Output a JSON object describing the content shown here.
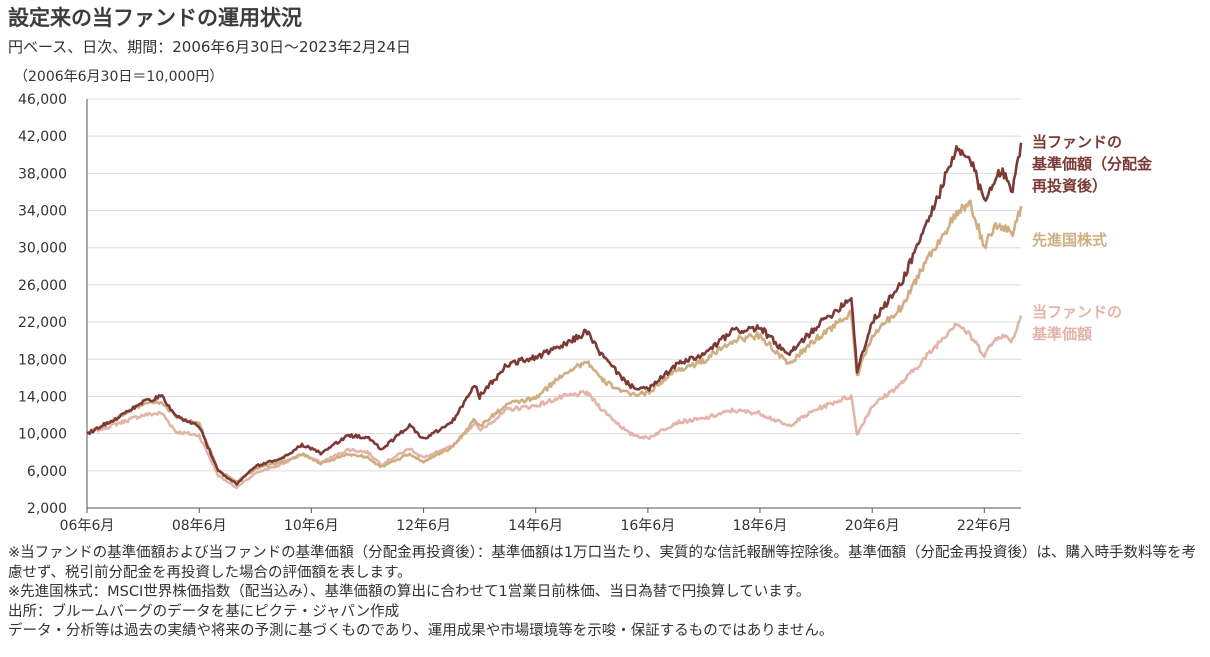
{
  "header": {
    "title": "設定来の当ファンドの運用状況",
    "subtitle": "円ベース、日次、期間：2006年6月30日～2023年2月24日",
    "unit": "（2006年6月30日＝10,000円）"
  },
  "chart_data": {
    "type": "line",
    "title": "設定来の当ファンドの運用状況",
    "subtitle": "円ベース、日次、期間：2006年6月30日～2023年2月24日",
    "ylabel": "（2006年6月30日＝10,000円）",
    "xlabel": "",
    "ylim": [
      2000,
      46000
    ],
    "xlim": [
      "2006-06-30",
      "2023-02-24"
    ],
    "yticks": [
      2000,
      6000,
      10000,
      14000,
      18000,
      22000,
      26000,
      30000,
      34000,
      38000,
      42000,
      46000
    ],
    "ytick_labels": [
      "2,000",
      "6,000",
      "10,000",
      "14,000",
      "18,000",
      "22,000",
      "26,000",
      "30,000",
      "34,000",
      "38,000",
      "42,000",
      "46,000"
    ],
    "xticks": [
      "2006-06-30",
      "2008-06-30",
      "2010-06-30",
      "2012-06-30",
      "2014-06-30",
      "2016-06-30",
      "2018-06-30",
      "2020-06-30",
      "2022-06-30"
    ],
    "xtick_labels": [
      "06年6月",
      "08年6月",
      "10年6月",
      "12年6月",
      "14年6月",
      "16年6月",
      "18年6月",
      "20年6月",
      "22年6月"
    ],
    "grid": true,
    "legend": "right",
    "series": [
      {
        "name": "当ファンドの基準価額",
        "color": "#e3b5aa",
        "points": [
          [
            "2006-06-30",
            10000
          ],
          [
            "2006-12-31",
            11000
          ],
          [
            "2007-06-30",
            12000
          ],
          [
            "2007-10-31",
            12200
          ],
          [
            "2008-01-31",
            10200
          ],
          [
            "2008-06-30",
            9800
          ],
          [
            "2008-10-31",
            5500
          ],
          [
            "2009-02-28",
            4200
          ],
          [
            "2009-06-30",
            5700
          ],
          [
            "2009-12-31",
            6800
          ],
          [
            "2010-04-30",
            7800
          ],
          [
            "2010-08-31",
            6900
          ],
          [
            "2011-02-28",
            8300
          ],
          [
            "2011-06-30",
            8000
          ],
          [
            "2011-09-30",
            6700
          ],
          [
            "2012-03-31",
            8400
          ],
          [
            "2012-06-30",
            7400
          ],
          [
            "2012-12-31",
            8600
          ],
          [
            "2013-05-31",
            11200
          ],
          [
            "2013-06-30",
            10300
          ],
          [
            "2013-12-31",
            12600
          ],
          [
            "2014-06-30",
            13000
          ],
          [
            "2014-12-31",
            14000
          ],
          [
            "2015-05-31",
            14400
          ],
          [
            "2015-08-31",
            12700
          ],
          [
            "2016-02-29",
            10000
          ],
          [
            "2016-06-30",
            9500
          ],
          [
            "2016-12-31",
            11200
          ],
          [
            "2017-06-30",
            11600
          ],
          [
            "2017-12-31",
            12500
          ],
          [
            "2018-06-30",
            12200
          ],
          [
            "2018-12-31",
            10800
          ],
          [
            "2019-06-30",
            12600
          ],
          [
            "2019-12-31",
            13800
          ],
          [
            "2020-02-15",
            14000
          ],
          [
            "2020-03-23",
            9900
          ],
          [
            "2020-06-30",
            13000
          ],
          [
            "2020-12-31",
            15300
          ],
          [
            "2021-06-30",
            18500
          ],
          [
            "2021-12-31",
            22000
          ],
          [
            "2022-03-31",
            20500
          ],
          [
            "2022-06-30",
            18500
          ],
          [
            "2022-09-30",
            20600
          ],
          [
            "2022-12-31",
            20100
          ],
          [
            "2023-02-24",
            22700
          ]
        ]
      },
      {
        "name": "先進国株式",
        "color": "#cfae82",
        "points": [
          [
            "2006-06-30",
            10000
          ],
          [
            "2006-12-31",
            11500
          ],
          [
            "2007-06-30",
            13200
          ],
          [
            "2007-10-31",
            13400
          ],
          [
            "2008-01-31",
            11800
          ],
          [
            "2008-06-30",
            11000
          ],
          [
            "2008-10-31",
            6100
          ],
          [
            "2009-02-28",
            4800
          ],
          [
            "2009-06-30",
            6200
          ],
          [
            "2009-12-31",
            7000
          ],
          [
            "2010-04-30",
            7800
          ],
          [
            "2010-08-31",
            6800
          ],
          [
            "2011-02-28",
            7800
          ],
          [
            "2011-06-30",
            7500
          ],
          [
            "2011-09-30",
            6400
          ],
          [
            "2012-03-31",
            7800
          ],
          [
            "2012-06-30",
            7000
          ],
          [
            "2012-12-31",
            8500
          ],
          [
            "2013-05-31",
            11600
          ],
          [
            "2013-06-30",
            10800
          ],
          [
            "2013-12-31",
            13200
          ],
          [
            "2014-06-30",
            13800
          ],
          [
            "2014-12-31",
            16500
          ],
          [
            "2015-05-31",
            17800
          ],
          [
            "2015-08-31",
            15800
          ],
          [
            "2016-02-29",
            14200
          ],
          [
            "2016-06-30",
            14400
          ],
          [
            "2016-12-31",
            16800
          ],
          [
            "2017-06-30",
            17800
          ],
          [
            "2017-12-31",
            20000
          ],
          [
            "2018-06-30",
            20600
          ],
          [
            "2018-12-31",
            17400
          ],
          [
            "2019-06-30",
            20200
          ],
          [
            "2019-12-31",
            22400
          ],
          [
            "2020-02-15",
            23000
          ],
          [
            "2020-03-23",
            16200
          ],
          [
            "2020-06-30",
            20500
          ],
          [
            "2020-12-31",
            23500
          ],
          [
            "2021-06-30",
            29000
          ],
          [
            "2021-12-31",
            33600
          ],
          [
            "2022-03-31",
            34600
          ],
          [
            "2022-06-30",
            30200
          ],
          [
            "2022-09-30",
            32600
          ],
          [
            "2022-12-31",
            31500
          ],
          [
            "2023-02-24",
            34500
          ]
        ]
      },
      {
        "name": "当ファンドの基準価額（分配金再投資後）",
        "color": "#7b3a35",
        "points": [
          [
            "2006-06-30",
            10000
          ],
          [
            "2006-12-31",
            11600
          ],
          [
            "2007-06-30",
            13400
          ],
          [
            "2007-10-31",
            14000
          ],
          [
            "2008-01-31",
            11800
          ],
          [
            "2008-06-30",
            10800
          ],
          [
            "2008-10-31",
            6000
          ],
          [
            "2009-02-28",
            4600
          ],
          [
            "2009-06-30",
            6500
          ],
          [
            "2009-12-31",
            7400
          ],
          [
            "2010-04-30",
            8800
          ],
          [
            "2010-08-31",
            7900
          ],
          [
            "2011-02-28",
            9800
          ],
          [
            "2011-06-30",
            9600
          ],
          [
            "2011-09-30",
            8300
          ],
          [
            "2012-03-31",
            10900
          ],
          [
            "2012-06-30",
            9400
          ],
          [
            "2012-12-31",
            11200
          ],
          [
            "2013-05-31",
            15200
          ],
          [
            "2013-06-30",
            14000
          ],
          [
            "2013-12-31",
            17500
          ],
          [
            "2014-06-30",
            18200
          ],
          [
            "2014-12-31",
            19500
          ],
          [
            "2015-05-31",
            21000
          ],
          [
            "2015-08-31",
            18500
          ],
          [
            "2016-02-29",
            15200
          ],
          [
            "2016-06-30",
            14700
          ],
          [
            "2016-12-31",
            17400
          ],
          [
            "2017-06-30",
            18500
          ],
          [
            "2017-12-31",
            21000
          ],
          [
            "2018-06-30",
            21400
          ],
          [
            "2018-12-31",
            18400
          ],
          [
            "2019-06-30",
            21500
          ],
          [
            "2019-12-31",
            24000
          ],
          [
            "2020-02-15",
            24800
          ],
          [
            "2020-03-23",
            16800
          ],
          [
            "2020-06-30",
            22000
          ],
          [
            "2020-12-31",
            26000
          ],
          [
            "2021-06-30",
            33000
          ],
          [
            "2021-12-31",
            40400
          ],
          [
            "2022-03-31",
            39500
          ],
          [
            "2022-06-30",
            35000
          ],
          [
            "2022-09-30",
            38500
          ],
          [
            "2022-12-31",
            36400
          ],
          [
            "2023-02-24",
            41300
          ]
        ]
      }
    ]
  },
  "legend": {
    "reinvested_line1": "当ファンドの",
    "reinvested_line2": "基準価額（分配金",
    "reinvested_line3": "再投資後）",
    "msci": "先進国株式",
    "nav_line1": "当ファンドの",
    "nav_line2": "基準価額"
  },
  "notes": [
    "※当ファンドの基準価額および当ファンドの基準価額（分配金再投資後）：基準価額は1万口当たり、実質的な信託報酬等控除後。基準価額（分配金再投資後）は、購入時手数料等を考慮せず、税引前分配金を再投資した場合の評価額を表します。",
    "※先進国株式：MSCI世界株価指数（配当込み）、基準価額の算出に合わせて1営業日前株価、当日為替で円換算しています。",
    "出所：ブルームバーグのデータを基にピクテ・ジャパン作成",
    "データ・分析等は過去の実績や将来の予測に基づくものであり、運用成果や市場環境等を示唆・保証するものではありません。"
  ]
}
